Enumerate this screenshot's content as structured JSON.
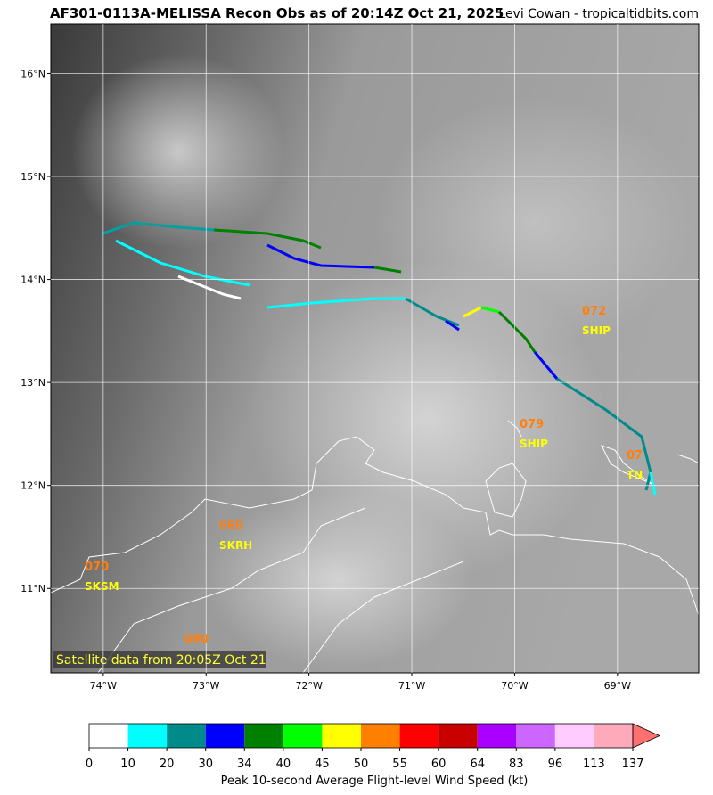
{
  "header": {
    "title": "AF301-0113A-MELISSA Recon Obs as of 20:14Z Oct 21, 2025",
    "credit": "Levi Cowan - tropicaltidbits.com"
  },
  "map": {
    "xlim": [
      -74.51,
      -68.21
    ],
    "ylim": [
      10.18,
      16.48
    ],
    "xticks": [
      {
        "value": -74,
        "label": "74°W"
      },
      {
        "value": -73,
        "label": "73°W"
      },
      {
        "value": -72,
        "label": "72°W"
      },
      {
        "value": -71,
        "label": "71°W"
      },
      {
        "value": -70,
        "label": "70°W"
      },
      {
        "value": -69,
        "label": "69°W"
      }
    ],
    "yticks": [
      {
        "value": 11,
        "label": "11°N"
      },
      {
        "value": 12,
        "label": "12°N"
      },
      {
        "value": 13,
        "label": "13°N"
      },
      {
        "value": 14,
        "label": "14°N"
      },
      {
        "value": 15,
        "label": "15°N"
      },
      {
        "value": 16,
        "label": "16°N"
      }
    ],
    "stations": [
      {
        "speed": "072",
        "name": "SHIP"
      },
      {
        "speed": "079",
        "name": "SHIP"
      },
      {
        "speed": "07",
        "name": "TN"
      },
      {
        "speed": "060",
        "name": "SKRH"
      },
      {
        "speed": "070",
        "name": "SKSM"
      },
      {
        "speed": "090"
      }
    ],
    "note": "Satellite data from 20:05Z Oct 21"
  },
  "colorbar": {
    "ticks": [
      0,
      10,
      20,
      30,
      34,
      40,
      45,
      50,
      55,
      60,
      64,
      83,
      96,
      113,
      137
    ],
    "colors": [
      "#ffffff",
      "#00ffff",
      "#008b8b",
      "#0000ff",
      "#008000",
      "#00ff00",
      "#ffff00",
      "#ff7f00",
      "#ff0000",
      "#c80000",
      "#aa00ff",
      "#cc66ff",
      "#ffccff",
      "#ffaabb"
    ],
    "extend_color": "#ff7070",
    "label": "Peak 10-second Average Flight-level Wind Speed (kt)"
  }
}
